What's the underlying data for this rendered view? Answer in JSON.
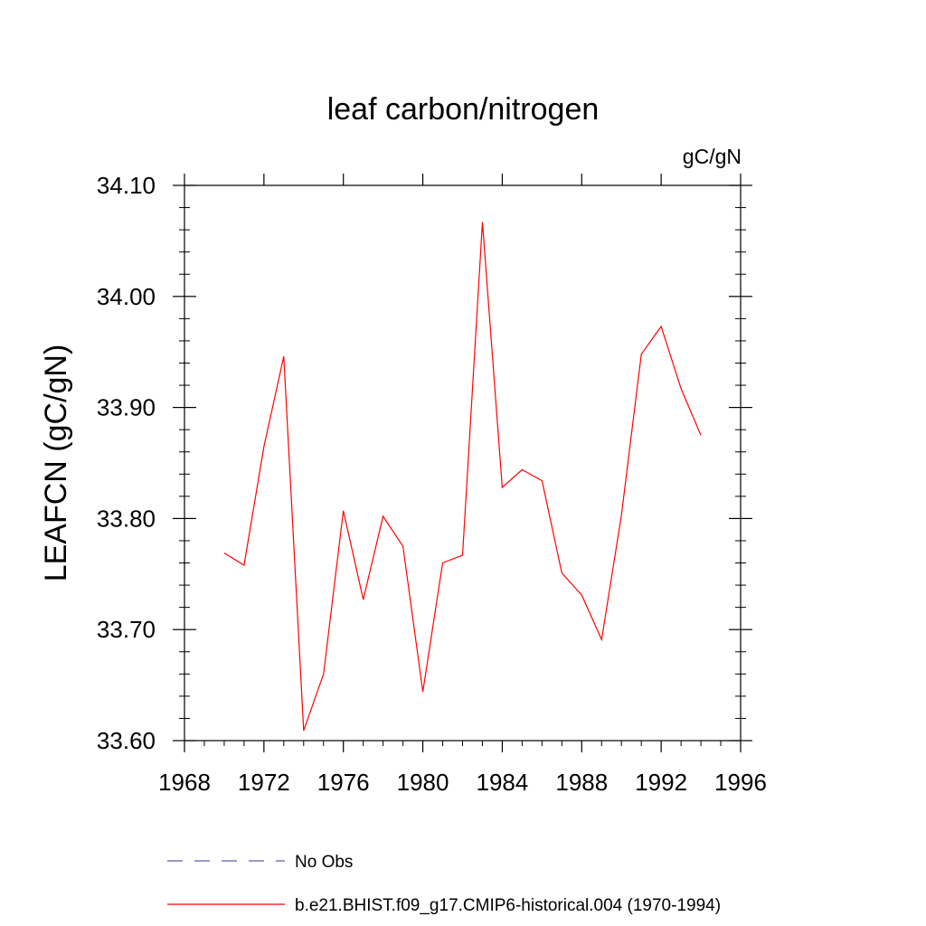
{
  "chart_data": {
    "type": "line",
    "title": "leaf carbon/nitrogen",
    "units": "gC/gN",
    "ylabel": "LEAFCN  (gC/gN)",
    "xlabel": "",
    "xlim": [
      1968,
      1996
    ],
    "ylim": [
      33.6,
      34.1
    ],
    "xticks": [
      1968,
      1972,
      1976,
      1980,
      1984,
      1988,
      1992,
      1996
    ],
    "xtick_labels": [
      "1968",
      "1972",
      "1976",
      "1980",
      "1984",
      "1988",
      "1992",
      "1996"
    ],
    "yticks": [
      33.6,
      33.7,
      33.8,
      33.9,
      34.0,
      34.1
    ],
    "ytick_labels": [
      "33.60",
      "33.70",
      "33.80",
      "33.90",
      "34.00",
      "34.10"
    ],
    "grid": false,
    "legend_position": "bottom",
    "series": [
      {
        "name": "b.e21.BHIST.f09_g17.CMIP6-historical.004 (1970-1994)",
        "color": "#ff0000",
        "style": "solid",
        "x": [
          1970,
          1971,
          1972,
          1973,
          1974,
          1975,
          1976,
          1977,
          1978,
          1979,
          1980,
          1981,
          1982,
          1983,
          1984,
          1985,
          1986,
          1987,
          1988,
          1989,
          1990,
          1991,
          1992,
          1993,
          1994
        ],
        "y": [
          33.769,
          33.758,
          33.865,
          33.946,
          33.609,
          33.66,
          33.807,
          33.727,
          33.802,
          33.775,
          33.644,
          33.76,
          33.767,
          34.067,
          33.828,
          33.844,
          33.834,
          33.751,
          33.731,
          33.691,
          33.803,
          33.948,
          33.973,
          33.917,
          33.875
        ]
      }
    ],
    "legend": [
      {
        "label": "No Obs",
        "color": "#5a5ab4",
        "style": "dashed"
      },
      {
        "label": "b.e21.BHIST.f09_g17.CMIP6-historical.004 (1970-1994)",
        "color": "#ff0000",
        "style": "solid"
      }
    ]
  }
}
